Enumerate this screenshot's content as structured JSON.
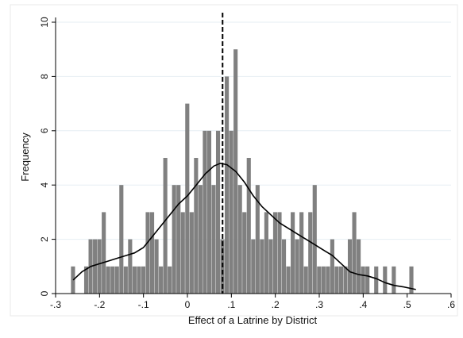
{
  "chart_data": {
    "type": "bar",
    "xlabel": "Effect of a Latrine by District",
    "ylabel": "Frequency",
    "xlim": [
      -0.3,
      0.6
    ],
    "ylim": [
      0,
      10
    ],
    "x_ticks": [
      "-.3",
      "-.2",
      "-.1",
      "0",
      ".1",
      ".2",
      ".3",
      ".4",
      ".5",
      ".6"
    ],
    "y_ticks": [
      "0",
      "2",
      "4",
      "6",
      "8",
      "10"
    ],
    "grid": "horizontal",
    "bin_width": 0.01,
    "bins": [
      {
        "x": -0.26,
        "y": 1
      },
      {
        "x": -0.23,
        "y": 1
      },
      {
        "x": -0.22,
        "y": 2
      },
      {
        "x": -0.21,
        "y": 2
      },
      {
        "x": -0.2,
        "y": 2
      },
      {
        "x": -0.19,
        "y": 3
      },
      {
        "x": -0.18,
        "y": 1
      },
      {
        "x": -0.17,
        "y": 1
      },
      {
        "x": -0.16,
        "y": 1
      },
      {
        "x": -0.15,
        "y": 4
      },
      {
        "x": -0.14,
        "y": 1
      },
      {
        "x": -0.13,
        "y": 2
      },
      {
        "x": -0.12,
        "y": 1
      },
      {
        "x": -0.11,
        "y": 1
      },
      {
        "x": -0.1,
        "y": 1
      },
      {
        "x": -0.09,
        "y": 3
      },
      {
        "x": -0.08,
        "y": 3
      },
      {
        "x": -0.07,
        "y": 2
      },
      {
        "x": -0.06,
        "y": 1
      },
      {
        "x": -0.05,
        "y": 5
      },
      {
        "x": -0.04,
        "y": 1
      },
      {
        "x": -0.03,
        "y": 4
      },
      {
        "x": -0.02,
        "y": 4
      },
      {
        "x": -0.01,
        "y": 3
      },
      {
        "x": 0.0,
        "y": 7
      },
      {
        "x": 0.01,
        "y": 3
      },
      {
        "x": 0.02,
        "y": 5
      },
      {
        "x": 0.03,
        "y": 4
      },
      {
        "x": 0.04,
        "y": 6
      },
      {
        "x": 0.05,
        "y": 6
      },
      {
        "x": 0.06,
        "y": 4
      },
      {
        "x": 0.07,
        "y": 6
      },
      {
        "x": 0.08,
        "y": 2
      },
      {
        "x": 0.09,
        "y": 8
      },
      {
        "x": 0.1,
        "y": 6
      },
      {
        "x": 0.11,
        "y": 9
      },
      {
        "x": 0.12,
        "y": 4
      },
      {
        "x": 0.13,
        "y": 3
      },
      {
        "x": 0.14,
        "y": 5
      },
      {
        "x": 0.15,
        "y": 2
      },
      {
        "x": 0.16,
        "y": 4
      },
      {
        "x": 0.17,
        "y": 2
      },
      {
        "x": 0.18,
        "y": 3
      },
      {
        "x": 0.19,
        "y": 2
      },
      {
        "x": 0.2,
        "y": 3
      },
      {
        "x": 0.21,
        "y": 3
      },
      {
        "x": 0.22,
        "y": 2
      },
      {
        "x": 0.23,
        "y": 1
      },
      {
        "x": 0.24,
        "y": 3
      },
      {
        "x": 0.25,
        "y": 2
      },
      {
        "x": 0.26,
        "y": 3
      },
      {
        "x": 0.27,
        "y": 1
      },
      {
        "x": 0.28,
        "y": 3
      },
      {
        "x": 0.29,
        "y": 4
      },
      {
        "x": 0.3,
        "y": 1
      },
      {
        "x": 0.31,
        "y": 1
      },
      {
        "x": 0.32,
        "y": 1
      },
      {
        "x": 0.33,
        "y": 2
      },
      {
        "x": 0.34,
        "y": 1
      },
      {
        "x": 0.35,
        "y": 1
      },
      {
        "x": 0.36,
        "y": 1
      },
      {
        "x": 0.37,
        "y": 2
      },
      {
        "x": 0.38,
        "y": 3
      },
      {
        "x": 0.39,
        "y": 2
      },
      {
        "x": 0.4,
        "y": 1
      },
      {
        "x": 0.41,
        "y": 1
      },
      {
        "x": 0.43,
        "y": 1
      },
      {
        "x": 0.45,
        "y": 1
      },
      {
        "x": 0.47,
        "y": 1
      },
      {
        "x": 0.51,
        "y": 1
      }
    ],
    "kde": [
      [
        -0.26,
        0.5
      ],
      [
        -0.24,
        0.8
      ],
      [
        -0.22,
        1.0
      ],
      [
        -0.2,
        1.1
      ],
      [
        -0.18,
        1.2
      ],
      [
        -0.16,
        1.3
      ],
      [
        -0.14,
        1.4
      ],
      [
        -0.12,
        1.5
      ],
      [
        -0.1,
        1.7
      ],
      [
        -0.08,
        2.1
      ],
      [
        -0.06,
        2.5
      ],
      [
        -0.04,
        2.9
      ],
      [
        -0.02,
        3.3
      ],
      [
        0.0,
        3.6
      ],
      [
        0.02,
        4.0
      ],
      [
        0.04,
        4.4
      ],
      [
        0.06,
        4.7
      ],
      [
        0.075,
        4.8
      ],
      [
        0.09,
        4.75
      ],
      [
        0.11,
        4.5
      ],
      [
        0.13,
        4.1
      ],
      [
        0.15,
        3.6
      ],
      [
        0.17,
        3.2
      ],
      [
        0.19,
        2.9
      ],
      [
        0.21,
        2.6
      ],
      [
        0.23,
        2.4
      ],
      [
        0.25,
        2.2
      ],
      [
        0.27,
        2.0
      ],
      [
        0.29,
        1.8
      ],
      [
        0.31,
        1.6
      ],
      [
        0.33,
        1.4
      ],
      [
        0.35,
        1.1
      ],
      [
        0.37,
        0.8
      ],
      [
        0.39,
        0.7
      ],
      [
        0.41,
        0.65
      ],
      [
        0.43,
        0.55
      ],
      [
        0.45,
        0.4
      ],
      [
        0.47,
        0.3
      ],
      [
        0.49,
        0.25
      ],
      [
        0.52,
        0.15
      ]
    ],
    "reference_line_x": 0.08,
    "colors": {
      "bars": "#808080",
      "kde": "#000000",
      "reference": "#000000",
      "grid": "#e6eef3"
    }
  }
}
